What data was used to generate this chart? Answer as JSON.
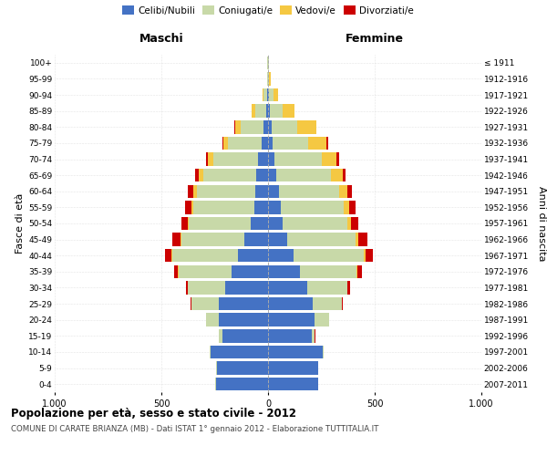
{
  "age_groups": [
    "0-4",
    "5-9",
    "10-14",
    "15-19",
    "20-24",
    "25-29",
    "30-34",
    "35-39",
    "40-44",
    "45-49",
    "50-54",
    "55-59",
    "60-64",
    "65-69",
    "70-74",
    "75-79",
    "80-84",
    "85-89",
    "90-94",
    "95-99",
    "100+"
  ],
  "birth_years": [
    "2007-2011",
    "2002-2006",
    "1997-2001",
    "1992-1996",
    "1987-1991",
    "1982-1986",
    "1977-1981",
    "1972-1976",
    "1967-1971",
    "1962-1966",
    "1957-1961",
    "1952-1956",
    "1947-1951",
    "1942-1946",
    "1937-1941",
    "1932-1936",
    "1927-1931",
    "1922-1926",
    "1917-1921",
    "1912-1916",
    "≤ 1911"
  ],
  "males": {
    "celibi": [
      245,
      240,
      270,
      215,
      230,
      230,
      200,
      170,
      140,
      110,
      80,
      65,
      60,
      55,
      45,
      30,
      20,
      10,
      5,
      2,
      2
    ],
    "coniugati": [
      1,
      2,
      5,
      15,
      60,
      130,
      175,
      250,
      310,
      295,
      290,
      285,
      275,
      250,
      210,
      160,
      110,
      50,
      15,
      3,
      2
    ],
    "vedovi": [
      0,
      0,
      0,
      0,
      0,
      0,
      1,
      2,
      3,
      5,
      8,
      10,
      15,
      20,
      25,
      20,
      25,
      15,
      5,
      1,
      0
    ],
    "divorziati": [
      0,
      0,
      0,
      1,
      2,
      5,
      10,
      20,
      30,
      40,
      30,
      30,
      25,
      15,
      10,
      5,
      2,
      0,
      0,
      0,
      0
    ]
  },
  "females": {
    "nubili": [
      235,
      235,
      255,
      205,
      220,
      210,
      185,
      150,
      120,
      90,
      70,
      60,
      50,
      40,
      30,
      20,
      15,
      10,
      5,
      2,
      2
    ],
    "coniugate": [
      1,
      2,
      5,
      15,
      65,
      135,
      185,
      265,
      330,
      320,
      300,
      295,
      285,
      255,
      220,
      170,
      120,
      60,
      20,
      4,
      2
    ],
    "vedove": [
      0,
      0,
      0,
      0,
      1,
      1,
      3,
      5,
      8,
      12,
      18,
      25,
      35,
      55,
      70,
      85,
      90,
      55,
      20,
      5,
      2
    ],
    "divorziate": [
      0,
      0,
      0,
      1,
      2,
      6,
      12,
      22,
      35,
      45,
      35,
      30,
      25,
      15,
      12,
      8,
      3,
      1,
      0,
      0,
      0
    ]
  },
  "colors": {
    "celibi": "#4472C4",
    "coniugati": "#C8D9A8",
    "vedovi": "#F5C842",
    "divorziati": "#CC0000"
  },
  "xlim": 1000,
  "title": "Popolazione per età, sesso e stato civile - 2012",
  "subtitle": "COMUNE DI CARATE BRIANZA (MB) - Dati ISTAT 1° gennaio 2012 - Elaborazione TUTTITALIA.IT",
  "ylabel_left": "Fasce di età",
  "ylabel_right": "Anni di nascita",
  "xlabel_left": "Maschi",
  "xlabel_right": "Femmine",
  "xticks": [
    -1000,
    -500,
    0,
    500,
    1000
  ],
  "xticklabels": [
    "1.000",
    "500",
    "0",
    "500",
    "1.000"
  ],
  "bg_color": "#FFFFFF",
  "grid_color": "#CCCCCC"
}
